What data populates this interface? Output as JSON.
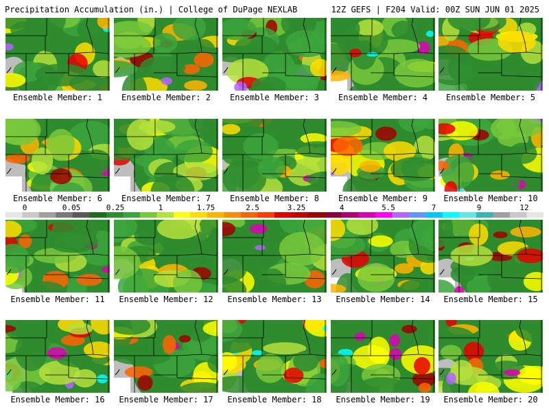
{
  "header": {
    "title_left": "Precipitation Accumulation (in.) | College of DuPage NEXLAB",
    "title_right": "12Z GEFS | F204 Valid: 00Z SUN JUN 01 2025"
  },
  "colorbar": {
    "labels": [
      "0",
      "0.05",
      "0.25",
      "1",
      "1.75",
      "2.5",
      "3.25",
      "4",
      "5.5",
      "7",
      "9",
      "12"
    ],
    "colors": [
      "#e6e6e6",
      "#c8c8c8",
      "#a0a0a0",
      "#787878",
      "#5a5a5a",
      "#1e6e1e",
      "#2e8b2e",
      "#3ca53c",
      "#78c83c",
      "#b4e13c",
      "#ffff00",
      "#ffdc00",
      "#ffb400",
      "#ff8c00",
      "#ff6400",
      "#ff3c00",
      "#e60000",
      "#c80000",
      "#a00000",
      "#8c003c",
      "#b4006e",
      "#dc00b4",
      "#ff00ff",
      "#b464ff",
      "#6496ff",
      "#00c8ff",
      "#00ffff",
      "#64e6e6",
      "#3cb4b4",
      "#a0a0a0",
      "#c8c8c8",
      "#e6e6e6"
    ]
  },
  "members": [
    {
      "label": "Ensemble Member: 1"
    },
    {
      "label": "Ensemble Member: 2"
    },
    {
      "label": "Ensemble Member: 3"
    },
    {
      "label": "Ensemble Member: 4"
    },
    {
      "label": "Ensemble Member: 5"
    },
    {
      "label": "Ensemble Member: 6"
    },
    {
      "label": "Ensemble Member: 7"
    },
    {
      "label": "Ensemble Member: 8"
    },
    {
      "label": "Ensemble Member: 9"
    },
    {
      "label": "Ensemble Member: 10"
    },
    {
      "label": "Ensemble Member: 11"
    },
    {
      "label": "Ensemble Member: 12"
    },
    {
      "label": "Ensemble Member: 13"
    },
    {
      "label": "Ensemble Member: 14"
    },
    {
      "label": "Ensemble Member: 15"
    },
    {
      "label": "Ensemble Member: 16"
    },
    {
      "label": "Ensemble Member: 17"
    },
    {
      "label": "Ensemble Member: 18"
    },
    {
      "label": "Ensemble Member: 19"
    },
    {
      "label": "Ensemble Member: 20"
    }
  ]
}
